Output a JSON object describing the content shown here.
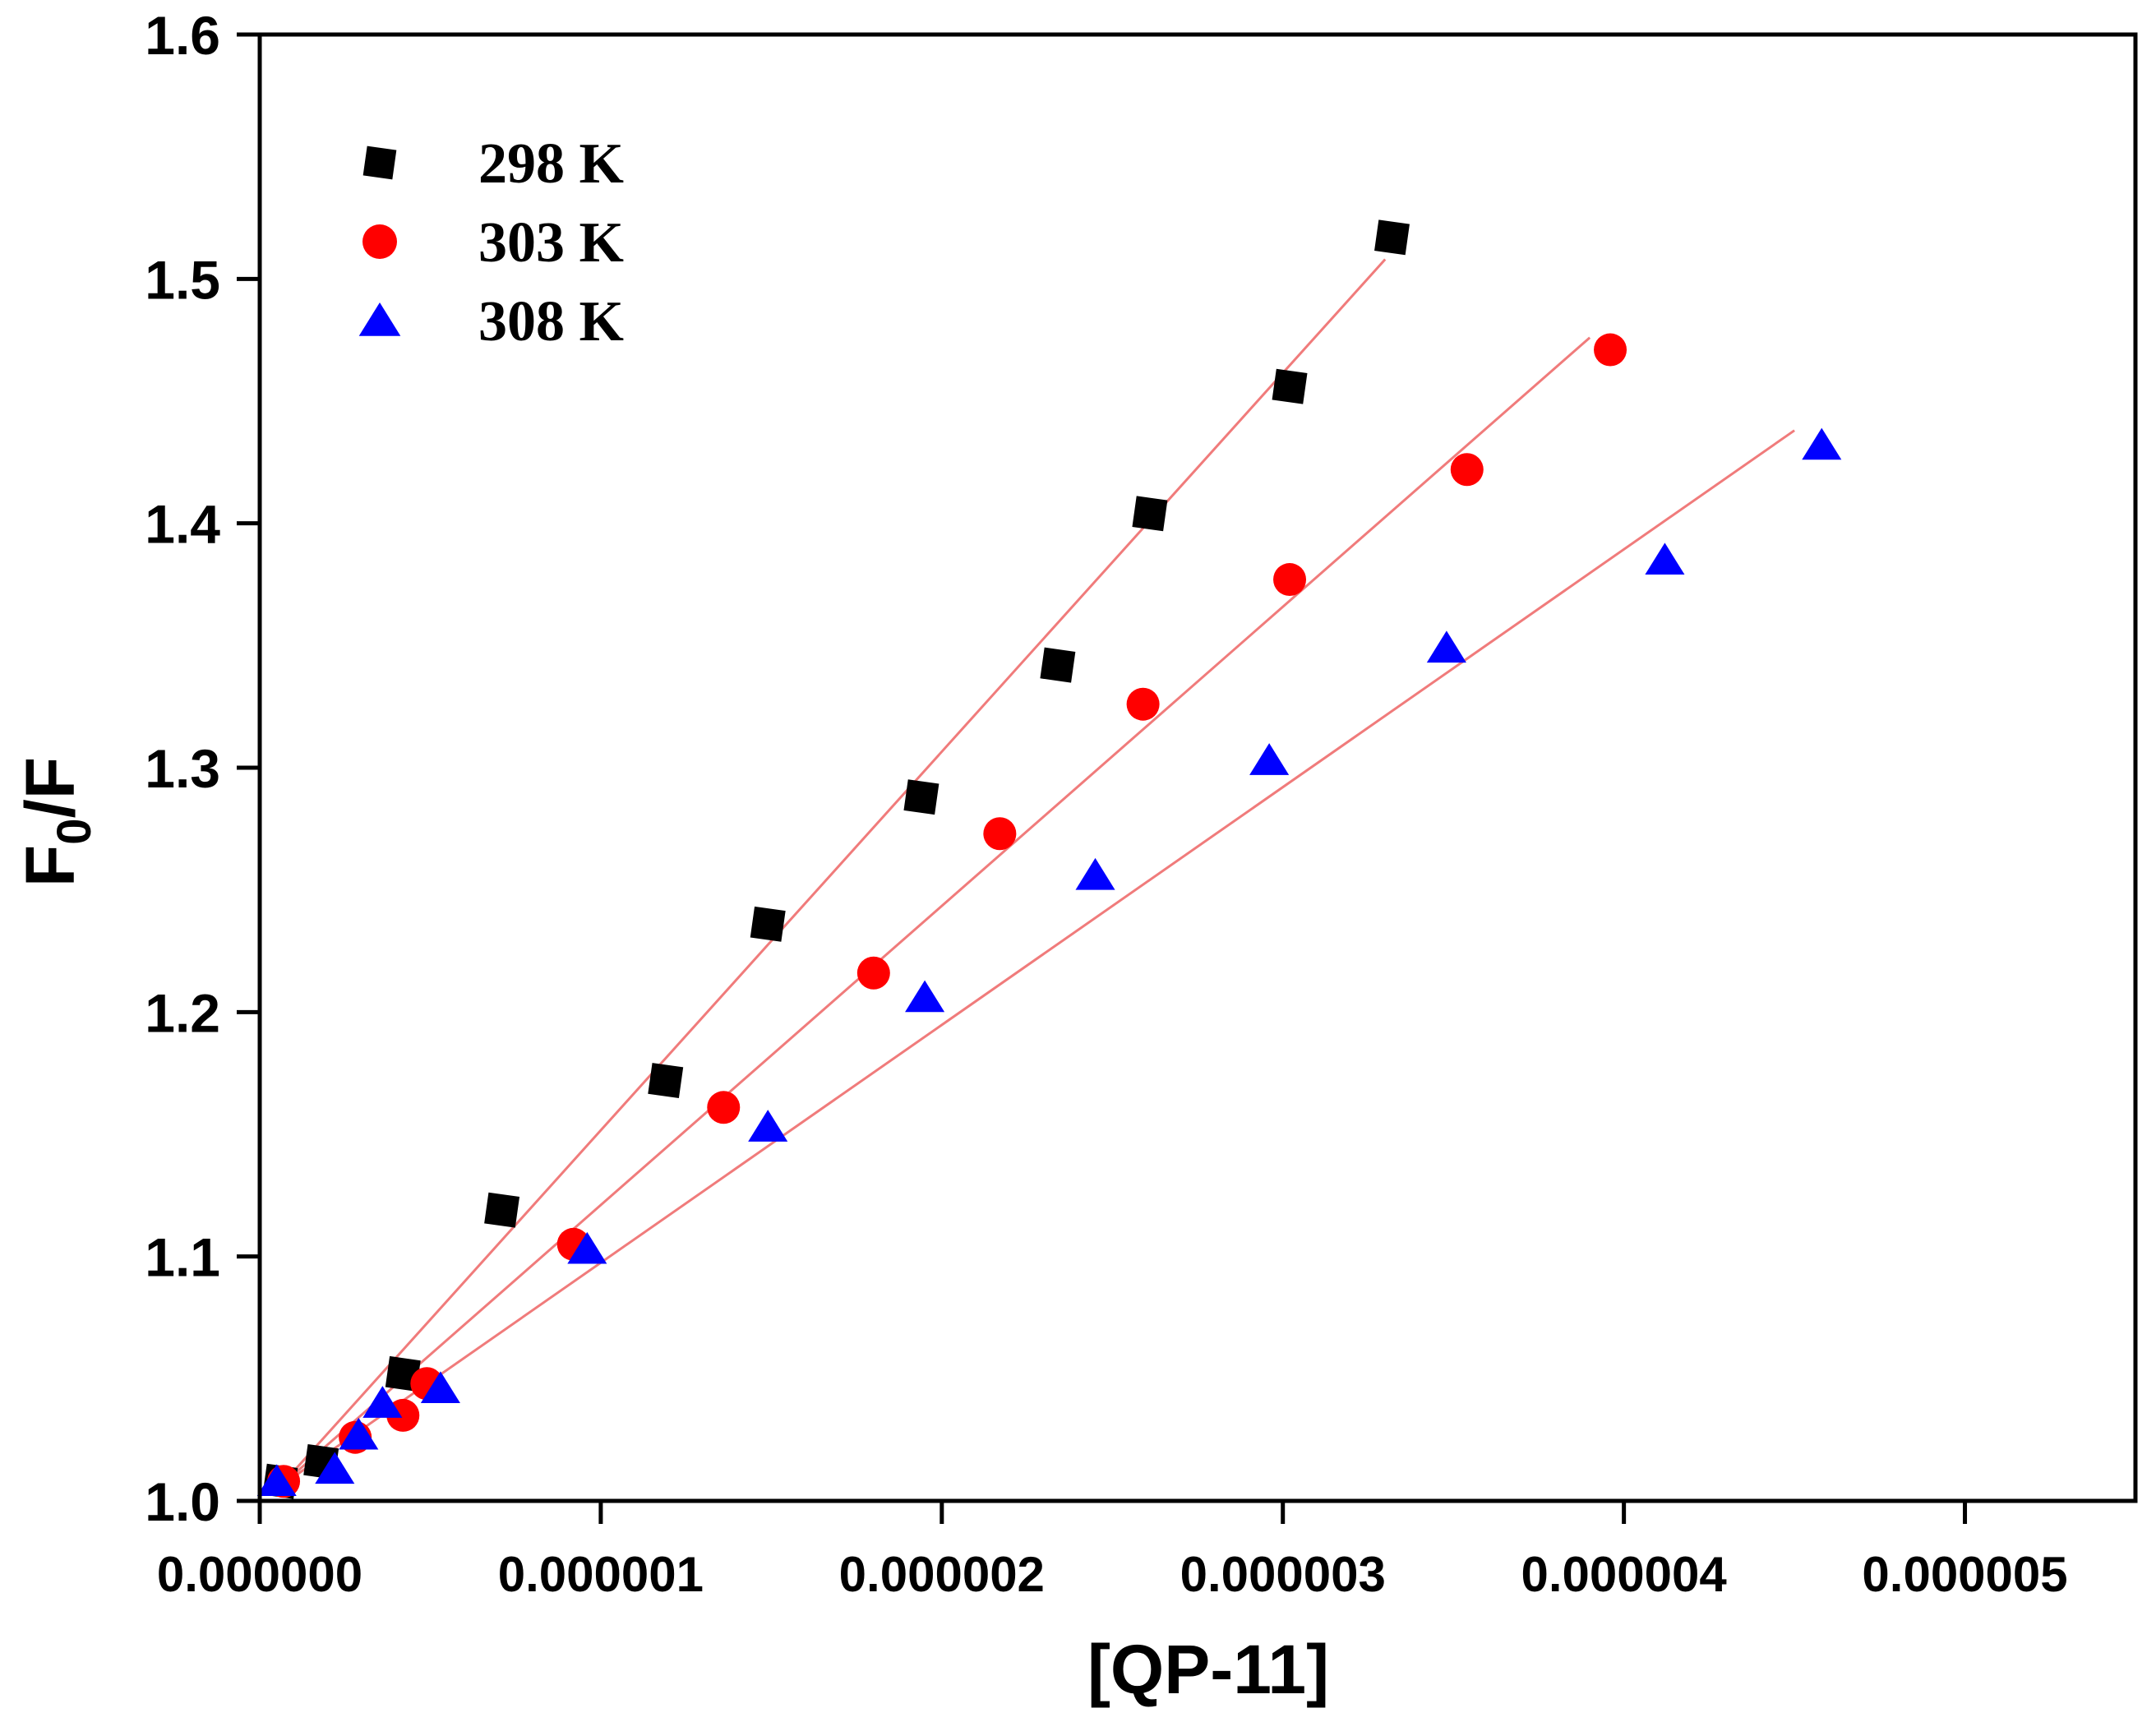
{
  "chart_data": {
    "type": "scatter",
    "title": "",
    "xlabel": "[QP-11]",
    "ylabel": {
      "base": "F",
      "sub": "0",
      "tail": "/F"
    },
    "xlim": [
      0,
      5.5e-06
    ],
    "ylim": [
      1.0,
      1.6
    ],
    "x_ticks": [
      {
        "value": 0,
        "label": "0.000000"
      },
      {
        "value": 1e-06,
        "label": "0.000001"
      },
      {
        "value": 2e-06,
        "label": "0.000002"
      },
      {
        "value": 3e-06,
        "label": "0.000003"
      },
      {
        "value": 4e-06,
        "label": "0.000004"
      },
      {
        "value": 5e-06,
        "label": "0.000005"
      }
    ],
    "y_ticks": [
      {
        "value": 1.0,
        "label": "1.0"
      },
      {
        "value": 1.1,
        "label": "1.1"
      },
      {
        "value": 1.2,
        "label": "1.2"
      },
      {
        "value": 1.3,
        "label": "1.3"
      },
      {
        "value": 1.4,
        "label": "1.4"
      },
      {
        "value": 1.5,
        "label": "1.5"
      },
      {
        "value": 1.6,
        "label": "1.6"
      }
    ],
    "grid": false,
    "legend_position": "top-left",
    "fit_line_color": "#f07b7b",
    "series": [
      {
        "name": "298 K",
        "marker": "square",
        "color": "#000000",
        "points": [
          [
            6e-08,
            1.008
          ],
          [
            1.8e-07,
            1.016
          ],
          [
            4.2e-07,
            1.052
          ],
          [
            7.1e-07,
            1.119
          ],
          [
            1.19e-06,
            1.172
          ],
          [
            1.49e-06,
            1.236
          ],
          [
            1.94e-06,
            1.288
          ],
          [
            2.34e-06,
            1.342
          ],
          [
            2.61e-06,
            1.404
          ],
          [
            3.02e-06,
            1.456
          ],
          [
            3.32e-06,
            1.517
          ]
        ],
        "fit": {
          "x_start": 6e-08,
          "x_end": 3.3e-06,
          "y_start": 1.006,
          "y_end": 1.508
        }
      },
      {
        "name": "303 K",
        "marker": "circle",
        "color": "#ff0000",
        "points": [
          [
            7e-08,
            1.008
          ],
          [
            2.8e-07,
            1.026
          ],
          [
            4.2e-07,
            1.035
          ],
          [
            4.9e-07,
            1.048
          ],
          [
            9.2e-07,
            1.105
          ],
          [
            1.36e-06,
            1.161
          ],
          [
            1.8e-06,
            1.216
          ],
          [
            2.17e-06,
            1.273
          ],
          [
            2.59e-06,
            1.326
          ],
          [
            3.02e-06,
            1.377
          ],
          [
            3.54e-06,
            1.422
          ],
          [
            3.96e-06,
            1.471
          ]
        ],
        "fit": {
          "x_start": 6e-08,
          "x_end": 3.9e-06,
          "y_start": 1.006,
          "y_end": 1.476
        }
      },
      {
        "name": "308 K",
        "marker": "triangle",
        "color": "#0000ff",
        "points": [
          [
            5e-08,
            1.008
          ],
          [
            2.2e-07,
            1.013
          ],
          [
            2.9e-07,
            1.027
          ],
          [
            3.6e-07,
            1.04
          ],
          [
            5.3e-07,
            1.046
          ],
          [
            9.6e-07,
            1.103
          ],
          [
            1.49e-06,
            1.153
          ],
          [
            1.95e-06,
            1.206
          ],
          [
            2.45e-06,
            1.256
          ],
          [
            2.96e-06,
            1.303
          ],
          [
            3.48e-06,
            1.349
          ],
          [
            4.12e-06,
            1.385
          ],
          [
            4.58e-06,
            1.432
          ]
        ],
        "fit": {
          "x_start": 6e-08,
          "x_end": 4.5e-06,
          "y_start": 1.006,
          "y_end": 1.438
        }
      }
    ]
  }
}
